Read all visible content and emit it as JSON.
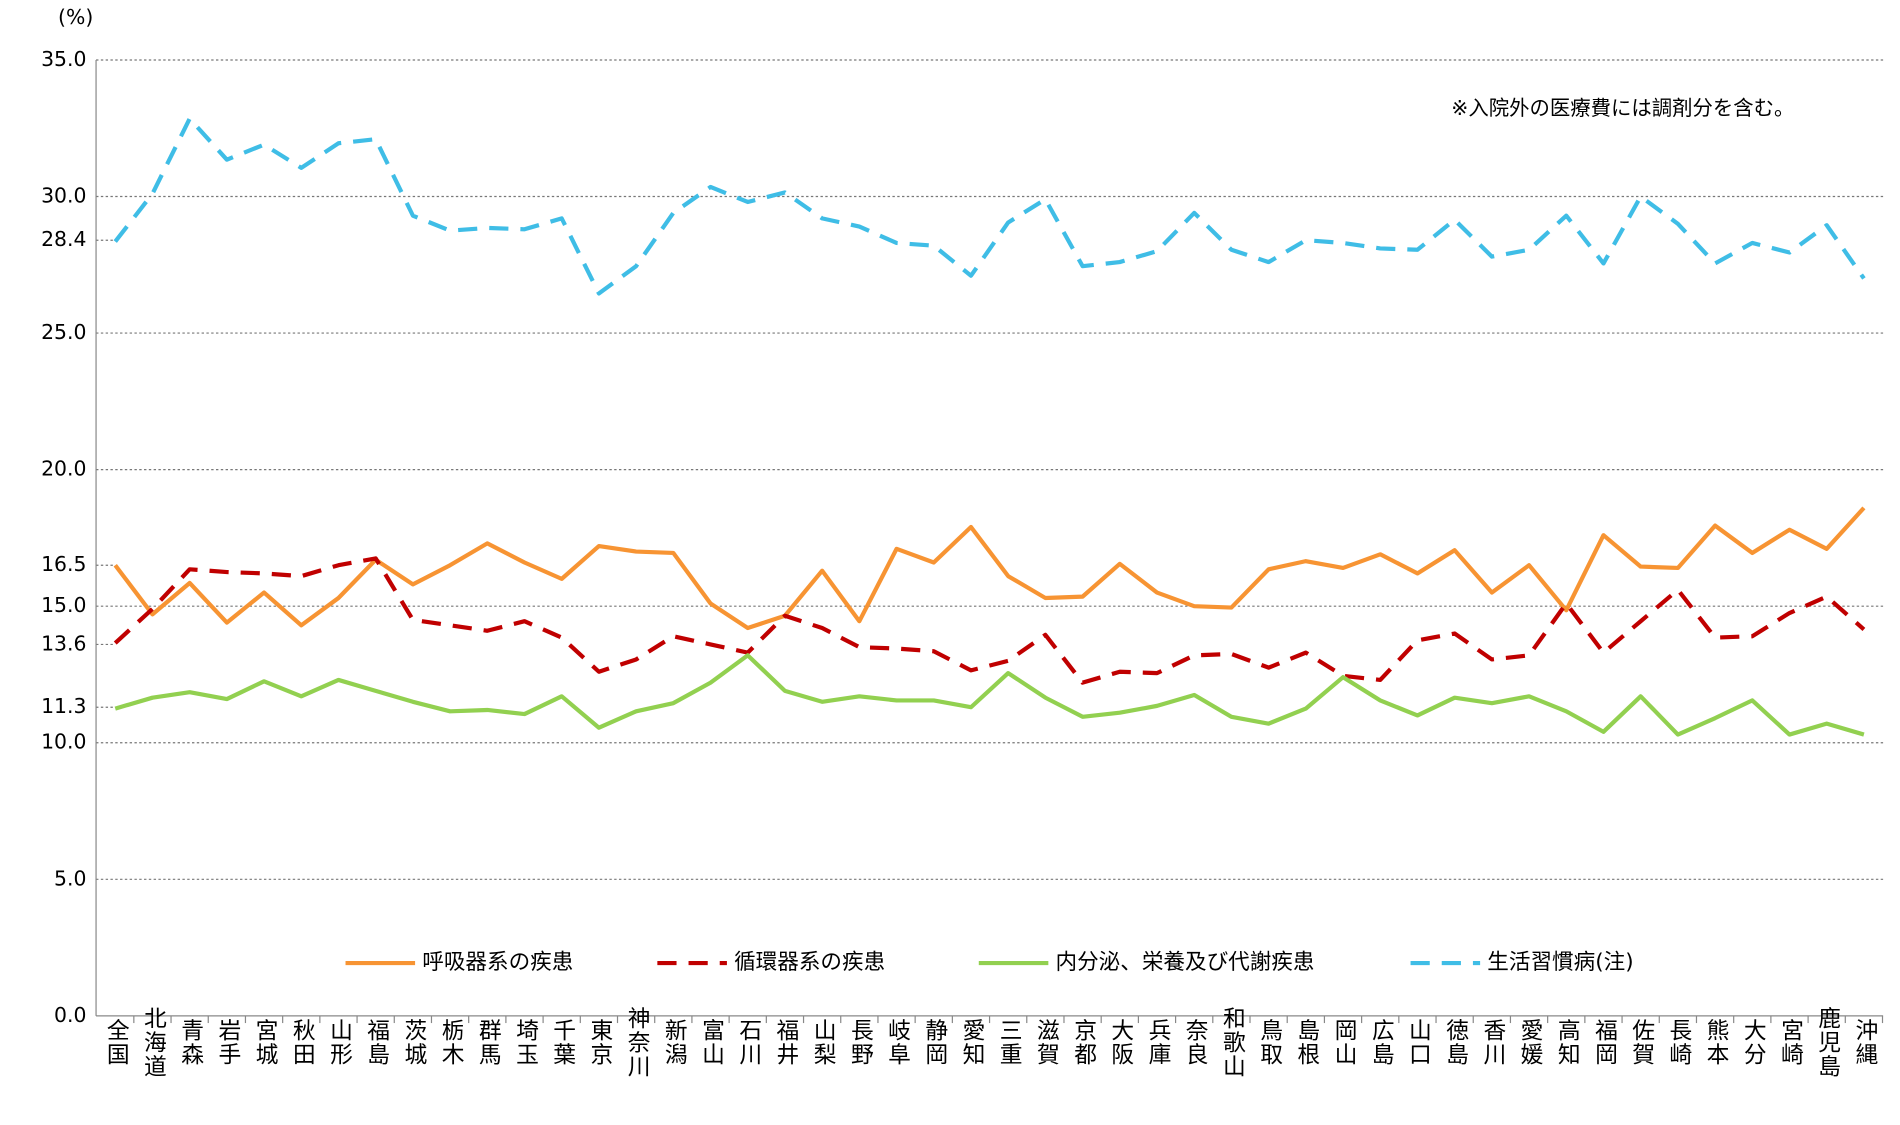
{
  "chart_data": {
    "type": "line",
    "y_unit_label": "(%)",
    "annotation": "※入院外の医療費には調剤分を含む。",
    "categories": [
      "全国",
      "北海道",
      "青森",
      "岩手",
      "宮城",
      "秋田",
      "山形",
      "福島",
      "茨城",
      "栃木",
      "群馬",
      "埼玉",
      "千葉",
      "東京",
      "神奈川",
      "新潟",
      "富山",
      "石川",
      "福井",
      "山梨",
      "長野",
      "岐阜",
      "静岡",
      "愛知",
      "三重",
      "滋賀",
      "京都",
      "大阪",
      "兵庫",
      "奈良",
      "和歌山",
      "鳥取",
      "島根",
      "岡山",
      "広島",
      "山口",
      "徳島",
      "香川",
      "愛媛",
      "高知",
      "福岡",
      "佐賀",
      "長崎",
      "熊本",
      "大分",
      "宮崎",
      "鹿児島",
      "沖縄"
    ],
    "series": [
      {
        "name": "呼吸器系の疾患",
        "color": "#f79433",
        "line_style": "solid",
        "values": [
          16.5,
          14.7,
          15.85,
          14.4,
          15.5,
          14.3,
          15.3,
          16.7,
          15.8,
          16.5,
          17.3,
          16.6,
          16.0,
          17.2,
          17.0,
          16.95,
          15.1,
          14.2,
          14.65,
          16.3,
          14.45,
          17.1,
          16.6,
          17.9,
          16.1,
          15.3,
          15.35,
          16.55,
          15.5,
          15.0,
          14.95,
          16.35,
          16.65,
          16.4,
          16.9,
          16.2,
          17.05,
          15.5,
          16.5,
          14.85,
          17.6,
          16.45,
          16.4,
          17.95,
          16.95,
          17.8,
          17.1,
          18.6
        ]
      },
      {
        "name": "循環器系の疾患",
        "color": "#c00000",
        "line_style": "dashed",
        "values": [
          13.65,
          14.9,
          16.35,
          16.25,
          16.2,
          16.1,
          16.5,
          16.75,
          14.5,
          14.3,
          14.1,
          14.45,
          13.85,
          12.6,
          13.05,
          13.9,
          13.6,
          13.3,
          14.65,
          14.2,
          13.5,
          13.45,
          13.35,
          12.65,
          13.0,
          13.95,
          12.2,
          12.6,
          12.55,
          13.2,
          13.25,
          12.75,
          13.3,
          12.45,
          12.3,
          13.75,
          14.0,
          13.05,
          13.2,
          15.1,
          13.3,
          14.45,
          15.6,
          13.85,
          13.9,
          14.75,
          15.35,
          14.15
        ]
      },
      {
        "name": "内分泌、栄養及び代謝疾患",
        "color": "#92d050",
        "line_style": "solid",
        "values": [
          11.25,
          11.65,
          11.85,
          11.6,
          12.25,
          11.7,
          12.3,
          11.9,
          11.5,
          11.15,
          11.2,
          11.05,
          11.7,
          10.55,
          11.15,
          11.45,
          12.2,
          13.2,
          11.9,
          11.5,
          11.7,
          11.55,
          11.55,
          11.3,
          12.55,
          11.65,
          10.95,
          11.1,
          11.35,
          11.75,
          10.95,
          10.7,
          11.25,
          12.4,
          11.55,
          11.0,
          11.65,
          11.45,
          11.7,
          11.15,
          10.4,
          11.7,
          10.3,
          10.9,
          11.55,
          10.3,
          10.7,
          10.3
        ]
      },
      {
        "name": "生活習慣病(注)",
        "color": "#3fbde6",
        "line_style": "dashed",
        "values": [
          28.35,
          30.1,
          32.85,
          31.35,
          31.9,
          31.05,
          31.95,
          32.1,
          29.3,
          28.75,
          28.85,
          28.8,
          29.2,
          26.45,
          27.45,
          29.4,
          30.35,
          29.8,
          30.15,
          29.2,
          28.9,
          28.3,
          28.2,
          27.1,
          29.05,
          29.9,
          27.45,
          27.6,
          28.0,
          29.4,
          28.05,
          27.6,
          28.4,
          28.3,
          28.1,
          28.05,
          29.15,
          27.8,
          28.05,
          29.3,
          27.55,
          30.0,
          29.0,
          27.55,
          28.3,
          27.95,
          28.95,
          27.0
        ]
      }
    ],
    "ylim": [
      0,
      35
    ],
    "yticks": [
      {
        "value": 0,
        "label": "0.0"
      },
      {
        "value": 5,
        "label": "5.0"
      },
      {
        "value": 10,
        "label": "10.0"
      },
      {
        "value": 11.3,
        "label": "11.3"
      },
      {
        "value": 13.6,
        "label": "13.6"
      },
      {
        "value": 15,
        "label": "15.0"
      },
      {
        "value": 16.5,
        "label": "16.5"
      },
      {
        "value": 20,
        "label": "20.0"
      },
      {
        "value": 25,
        "label": "25.0"
      },
      {
        "value": 28.4,
        "label": "28.4"
      },
      {
        "value": 30,
        "label": "30.0"
      },
      {
        "value": 35,
        "label": "35.0"
      }
    ],
    "grid": true,
    "legend": "bottom"
  }
}
